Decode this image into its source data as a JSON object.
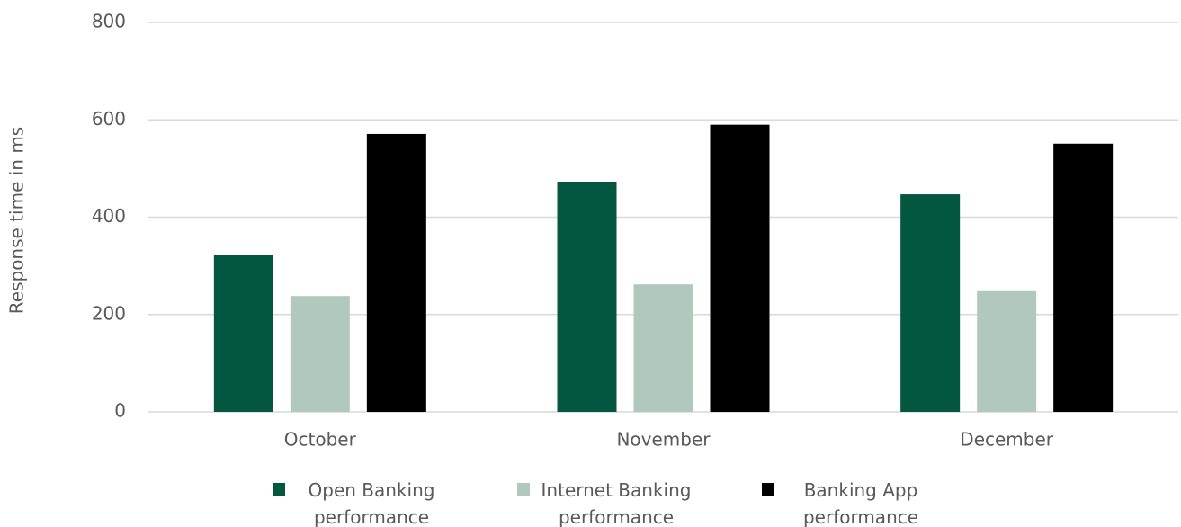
{
  "chart_data": {
    "type": "bar",
    "ylabel": "Response time in ms",
    "categories": [
      "October",
      "November",
      "December"
    ],
    "series": [
      {
        "name": "Open Banking performance",
        "color": "#03563f",
        "values": [
          322,
          473,
          447
        ]
      },
      {
        "name": "Internet Banking performance",
        "color": "#b1c8bf",
        "values": [
          238,
          262,
          248
        ]
      },
      {
        "name": "Banking App performance",
        "color": "#000000",
        "values": [
          571,
          590,
          551
        ]
      }
    ],
    "ylim": [
      0,
      800
    ],
    "yticks": [
      0,
      200,
      400,
      600,
      800
    ],
    "grid": true,
    "legend": "bottom"
  }
}
